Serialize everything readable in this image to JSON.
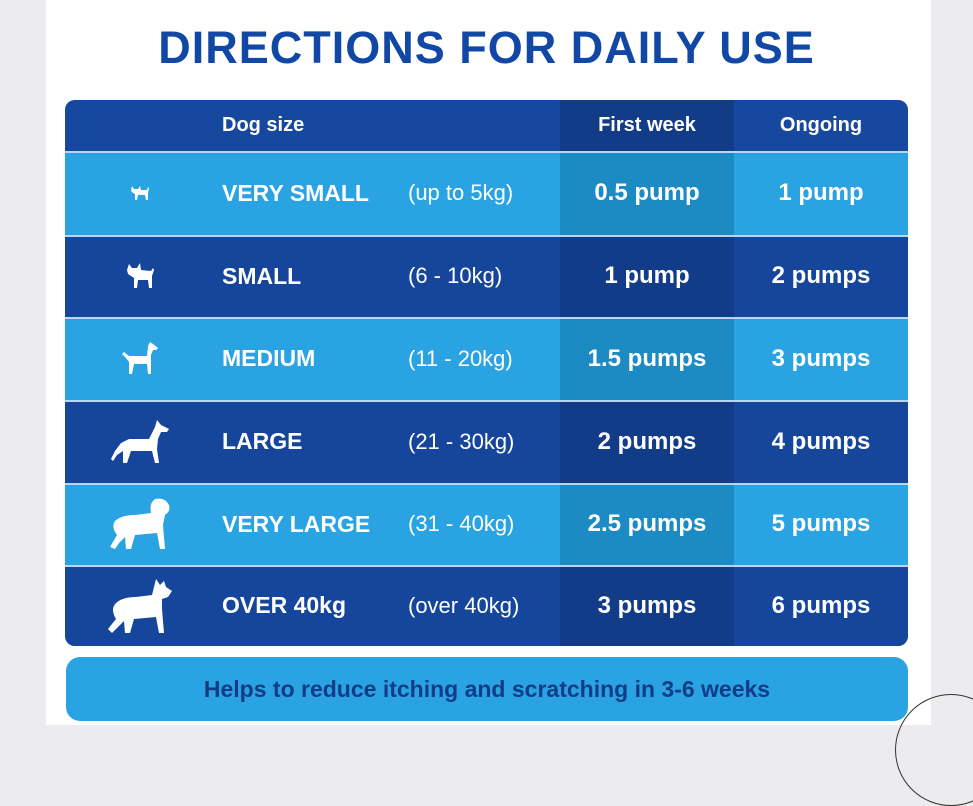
{
  "title": "DIRECTIONS FOR DAILY USE",
  "header": {
    "dog_size": "Dog size",
    "first_week": "First week",
    "ongoing": "Ongoing"
  },
  "rows": [
    {
      "icon": "dog-very-small-icon",
      "size": "VERY SMALL",
      "range": "(up to 5kg)",
      "first_week": "0.5 pump",
      "ongoing": "1 pump"
    },
    {
      "icon": "dog-small-icon",
      "size": "SMALL",
      "range": "(6 - 10kg)",
      "first_week": "1 pump",
      "ongoing": "2 pumps"
    },
    {
      "icon": "dog-medium-icon",
      "size": "MEDIUM",
      "range": "(11 - 20kg)",
      "first_week": "1.5 pumps",
      "ongoing": "3 pumps"
    },
    {
      "icon": "dog-large-icon",
      "size": "LARGE",
      "range": "(21 - 30kg)",
      "first_week": "2 pumps",
      "ongoing": "4 pumps"
    },
    {
      "icon": "dog-very-large-icon",
      "size": "VERY LARGE",
      "range": "(31 - 40kg)",
      "first_week": "2.5 pumps",
      "ongoing": "5 pumps"
    },
    {
      "icon": "dog-over-40kg-icon",
      "size": "OVER 40kg",
      "range": "(over 40kg)",
      "first_week": "3 pumps",
      "ongoing": "6 pumps"
    }
  ],
  "footer": "Helps to reduce itching and scratching in 3-6 weeks",
  "colors": {
    "title": "#1148a6",
    "dark_row": "#16469c",
    "light_row": "#2aa3e2",
    "first_week_dark": "#123b88",
    "first_week_light": "#1c8bc4"
  }
}
